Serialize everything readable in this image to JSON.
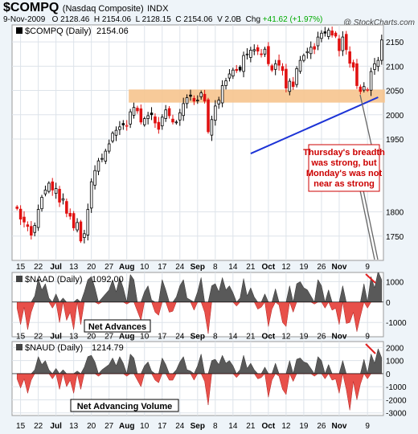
{
  "header": {
    "symbol": "$COMPQ",
    "name": "(Nasdaq Composite)",
    "exchange": "INDX",
    "copyright": "@ StockCharts.com",
    "date": "9-Nov-2009",
    "open_label": "O",
    "open": "2128.46",
    "high_label": "H",
    "high": "2154.06",
    "low_label": "L",
    "low": "2128.15",
    "close_label": "C",
    "close": "2154.06",
    "volume_label": "V",
    "volume": "2.0B",
    "change_label": "Chg",
    "change": "+41.62 (+1.97%)"
  },
  "chart_data": [
    {
      "type": "candlestick",
      "title": "$COMPQ (Daily) 2154.06",
      "legend_symbol": "$COMPQ (Daily)",
      "legend_value": "2154.06",
      "ylim": [
        1700,
        2185
      ],
      "yticks": [
        1750,
        1800,
        1950,
        2000,
        2050,
        2100,
        2150
      ],
      "xtick_labels": [
        "15",
        "22",
        "Jul",
        "13",
        "20",
        "27",
        "Aug",
        "10",
        "17",
        "24",
        "Sep",
        "8",
        "14",
        "21",
        "Oct",
        "12",
        "19",
        "26",
        "Nov",
        "9"
      ],
      "close": [
        1807,
        1785,
        1779,
        1770,
        1752,
        1772,
        1805,
        1830,
        1845,
        1859,
        1845,
        1848,
        1820,
        1827,
        1797,
        1791,
        1767,
        1778,
        1740,
        1755,
        1805,
        1862,
        1885,
        1905,
        1910,
        1925,
        1940,
        1962,
        1968,
        1975,
        1979,
        1978,
        2006,
        2015,
        2008,
        1985,
        1992,
        1998,
        2000,
        1983,
        1970,
        1995,
        2010,
        1998,
        1985,
        1985,
        2004,
        2023,
        2035,
        2038,
        2028,
        2030,
        2045,
        2028,
        1965,
        1990,
        2018,
        2030,
        2060,
        2070,
        2084,
        2092,
        2091,
        2092,
        2122,
        2125,
        2133,
        2134,
        2131,
        2125,
        2135,
        2105,
        2092,
        2105,
        2102,
        2091,
        2055,
        2069,
        2058,
        2095,
        2112,
        2122,
        2130,
        2139,
        2135,
        2160,
        2168,
        2168,
        2174,
        2164,
        2162,
        2132,
        2160,
        2134,
        2106,
        2098,
        2060,
        2048,
        2058,
        2052,
        2089,
        2105,
        2112,
        2154
      ],
      "annotation": {
        "lines": [
          "Thursday's breadth",
          "was strong, but",
          "Monday's was not",
          "near as strong"
        ]
      },
      "support_band": [
        2025,
        2052
      ],
      "trendline": [
        [
          66,
          1920
        ],
        [
          102,
          2036
        ]
      ]
    },
    {
      "type": "area",
      "title": "$NAAD (Daily) 1092.00",
      "legend_symbol": "$NAAD (Daily)",
      "legend_value": "1092.00",
      "label": "Net Advances",
      "ylim": [
        -1700,
        1450
      ],
      "yticks": [
        1000,
        0,
        -1000
      ],
      "values": [
        -300,
        -1100,
        -250,
        -1350,
        -500,
        300,
        1150,
        600,
        900,
        200,
        -300,
        400,
        -1000,
        200,
        -900,
        -500,
        -1350,
        150,
        -1100,
        500,
        1100,
        1250,
        700,
        -100,
        200,
        400,
        600,
        1100,
        500,
        1200,
        700,
        -100,
        1350,
        1100,
        -450,
        -900,
        500,
        800,
        100,
        -500,
        -650,
        1100,
        600,
        -500,
        -450,
        250,
        800,
        1100,
        200,
        100,
        -400,
        500,
        1200,
        -500,
        -1550,
        800,
        900,
        500,
        1200,
        600,
        800,
        450,
        -200,
        200,
        1150,
        300,
        700,
        250,
        -350,
        -250,
        400,
        -1200,
        -350,
        650,
        -150,
        -1000,
        -1200,
        800,
        -500,
        900,
        1000,
        700,
        600,
        300,
        -100,
        1100,
        800,
        -300,
        600,
        -400,
        -300,
        -1100,
        800,
        -1050,
        -1000,
        -500,
        -1450,
        -700,
        900,
        -300,
        1250,
        700,
        1500,
        1092
      ]
    },
    {
      "type": "area",
      "title": "$NAUD (Daily) 1214.79",
      "legend_symbol": "$NAUD (Daily)",
      "legend_value": "1214.79",
      "label": "Net Advancing Volume",
      "ylim": [
        -3200,
        2450
      ],
      "yticks": [
        2000,
        1000,
        0,
        -1000,
        -2000,
        -3000
      ],
      "values": [
        -400,
        -1100,
        -400,
        -1500,
        -500,
        300,
        1300,
        700,
        1000,
        300,
        -400,
        400,
        -1200,
        300,
        -1000,
        -500,
        -1500,
        200,
        -1200,
        500,
        1300,
        1400,
        900,
        -200,
        300,
        500,
        700,
        1200,
        600,
        1300,
        800,
        -200,
        1500,
        1200,
        -500,
        -1000,
        600,
        900,
        200,
        -500,
        -700,
        1200,
        700,
        -500,
        -500,
        300,
        900,
        1300,
        300,
        200,
        -500,
        600,
        1500,
        -600,
        -2400,
        1000,
        1100,
        700,
        1400,
        800,
        1000,
        600,
        -300,
        300,
        1400,
        400,
        800,
        300,
        -400,
        -300,
        500,
        -1800,
        -500,
        800,
        -200,
        -1200,
        -1600,
        1000,
        -600,
        1100,
        1200,
        900,
        800,
        400,
        -200,
        1300,
        1000,
        -400,
        700,
        -500,
        -400,
        -1500,
        1000,
        -1200,
        -2800,
        -600,
        -2000,
        -800,
        1100,
        -400,
        1500,
        800,
        1900,
        1215
      ]
    }
  ]
}
